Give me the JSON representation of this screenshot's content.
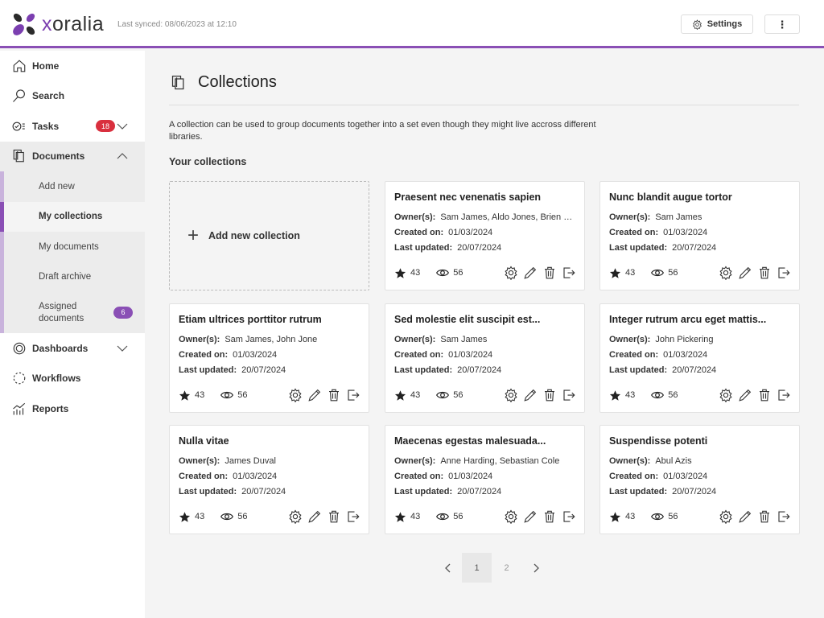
{
  "app": {
    "logo_text_accent": "x",
    "logo_text_rest": "oralia",
    "last_synced": "Last synced: 08/06/2023 at 12:10",
    "settings_label": "Settings",
    "brand_color": "#8a4fb5"
  },
  "sidebar": {
    "home": "Home",
    "search": "Search",
    "tasks": "Tasks",
    "tasks_badge": "18",
    "tasks_badge_color": "#d9303e",
    "documents": "Documents",
    "documents_sub": [
      {
        "label": "Add new"
      },
      {
        "label": "My collections",
        "selected": true
      },
      {
        "label": "My documents"
      },
      {
        "label": "Draft archive"
      },
      {
        "label": "Assigned documents",
        "badge": "6"
      }
    ],
    "assigned_badge_color": "#8a4fb5",
    "dashboards": "Dashboards",
    "workflows": "Workflows",
    "reports": "Reports"
  },
  "main": {
    "title": "Collections",
    "description": "A collection can be used to group documents together into a set even though they might live accross different libraries.",
    "section": "Your collections",
    "add_label": "Add new collection",
    "owner_label": "Owner(s):",
    "created_label": "Created on:",
    "updated_label": "Last updated:",
    "cards": [
      {
        "title": "Praesent nec venenatis sapien",
        "owners": "Sam James, Aldo Jones, Brien Smith",
        "created": "01/03/2024",
        "updated": "20/07/2024",
        "stars": "43",
        "views": "56"
      },
      {
        "title": "Nunc blandit augue tortor",
        "owners": "Sam James",
        "created": "01/03/2024",
        "updated": "20/07/2024",
        "stars": "43",
        "views": "56"
      },
      {
        "title": "Etiam ultrices porttitor rutrum",
        "owners": "Sam James, John Jone",
        "created": "01/03/2024",
        "updated": "20/07/2024",
        "stars": "43",
        "views": "56"
      },
      {
        "title": "Sed molestie elit suscipit est...",
        "owners": "Sam James",
        "created": "01/03/2024",
        "updated": "20/07/2024",
        "stars": "43",
        "views": "56"
      },
      {
        "title": "Integer rutrum arcu eget mattis...",
        "owners": "John Pickering",
        "created": "01/03/2024",
        "updated": "20/07/2024",
        "stars": "43",
        "views": "56"
      },
      {
        "title": "Nulla vitae",
        "owners": "James Duval",
        "created": "01/03/2024",
        "updated": "20/07/2024",
        "stars": "43",
        "views": "56"
      },
      {
        "title": "Maecenas egestas malesuada...",
        "owners": "Anne Harding, Sebastian Cole",
        "created": "01/03/2024",
        "updated": "20/07/2024",
        "stars": "43",
        "views": "56"
      },
      {
        "title": "Suspendisse potenti",
        "owners": "Abul Azis",
        "created": "01/03/2024",
        "updated": "20/07/2024",
        "stars": "43",
        "views": "56"
      }
    ]
  },
  "pagination": {
    "pages": [
      "1",
      "2"
    ],
    "current": "1"
  }
}
